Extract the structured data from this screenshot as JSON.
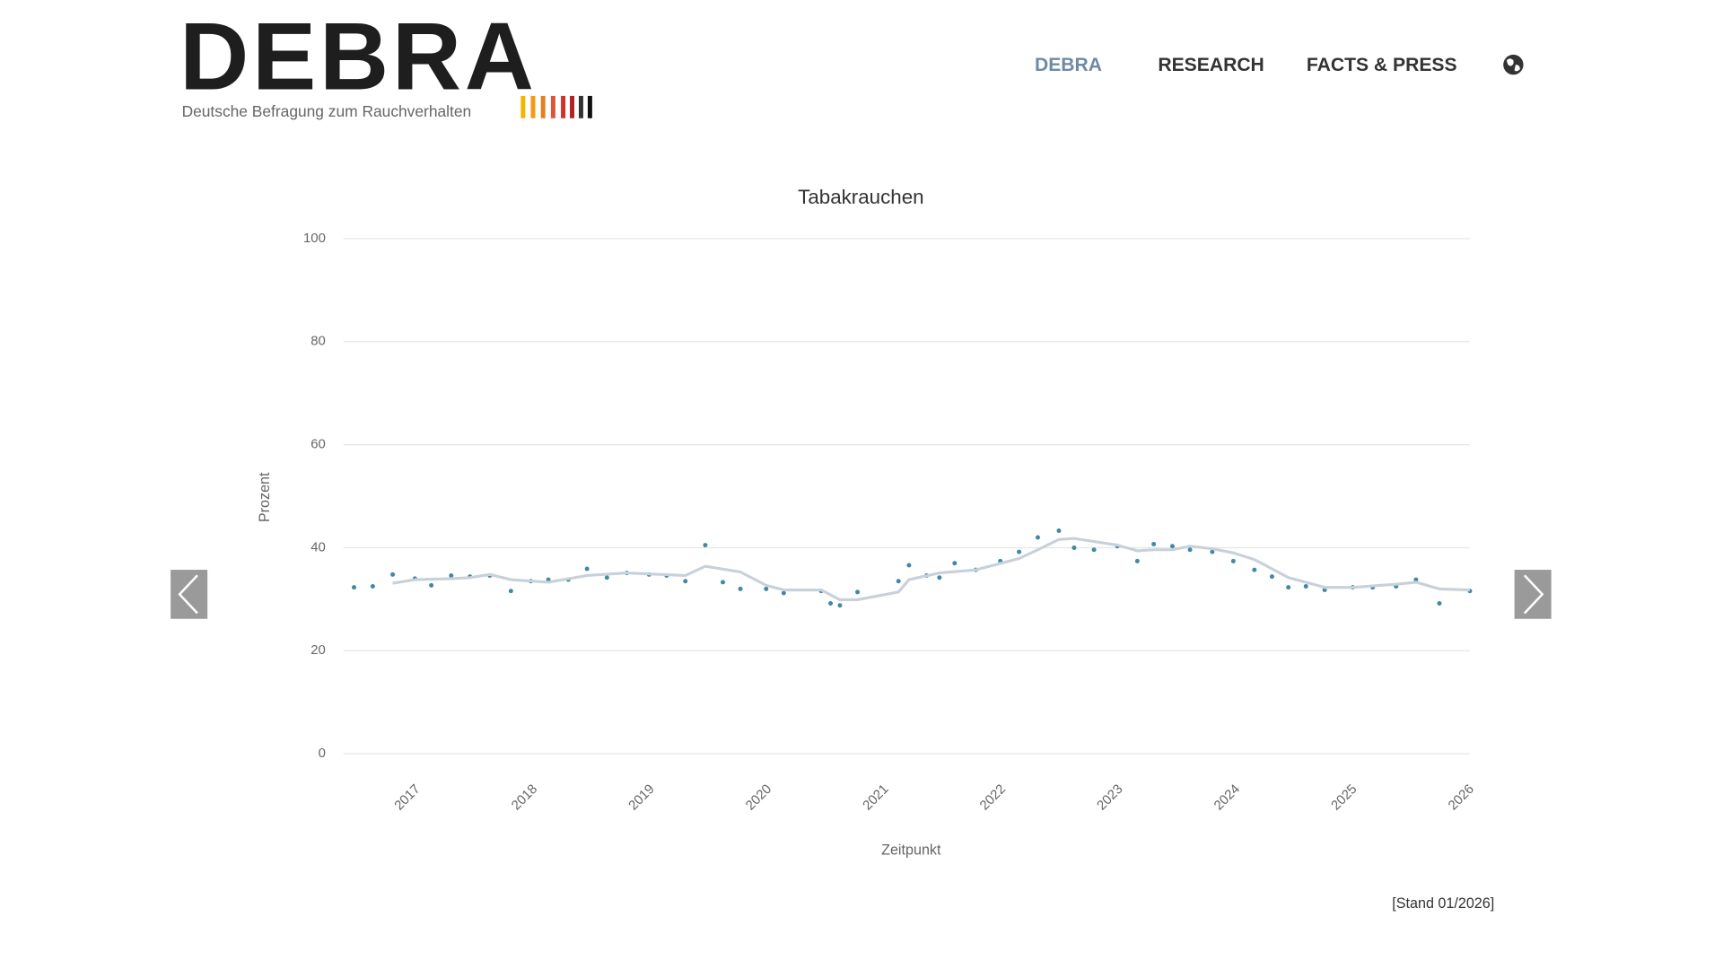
{
  "header": {
    "logo": "DEBRA",
    "tagline": "Deutsche Befragung zum Rauchverhalten",
    "nav": [
      "DEBRA",
      "RESEARCH",
      "FACTS & PRESS"
    ]
  },
  "chart_data": {
    "type": "line",
    "title": "Tabakrauchen",
    "x_label": "Zeitpunkt",
    "y_label": "Prozent",
    "xlim": [
      2016.38,
      2026
    ],
    "xticks": [
      2017,
      2018,
      2019,
      2020,
      2021,
      2022,
      2023,
      2024,
      2025,
      2026
    ],
    "ylim": [
      0,
      100
    ],
    "yticks": [
      0,
      20,
      40,
      60,
      80,
      100
    ],
    "grid": true,
    "series": [
      {
        "type": "scatter",
        "color": "#3f88a6",
        "x": [
          2016.47,
          2016.63,
          2016.8,
          2016.99,
          2017.13,
          2017.3,
          2017.46,
          2017.63,
          2017.81,
          2017.98,
          2018.13,
          2018.3,
          2018.46,
          2018.63,
          2018.8,
          2018.99,
          2019.14,
          2019.3,
          2019.47,
          2019.62,
          2019.77,
          2019.99,
          2020.14,
          2020.46,
          2020.54,
          2020.62,
          2020.77,
          2021.12,
          2021.21,
          2021.36,
          2021.47,
          2021.6,
          2021.78,
          2021.99,
          2022.15,
          2022.31,
          2022.49,
          2022.62,
          2022.79,
          2022.99,
          2023.16,
          2023.3,
          2023.46,
          2023.61,
          2023.8,
          2023.98,
          2024.16,
          2024.31,
          2024.45,
          2024.6,
          2024.76,
          2025.0,
          2025.17,
          2025.37,
          2025.54,
          2025.74,
          2026.0
        ],
        "values": [
          32.3,
          32.5,
          34.8,
          34.0,
          32.7,
          34.6,
          34.4,
          34.6,
          31.6,
          33.5,
          33.8,
          33.8,
          35.9,
          34.2,
          35.1,
          34.8,
          34.6,
          33.5,
          40.5,
          33.3,
          32.0,
          32.0,
          31.2,
          31.6,
          29.2,
          28.8,
          31.4,
          33.5,
          36.6,
          34.6,
          34.2,
          37.0,
          35.7,
          37.4,
          39.2,
          42.0,
          43.3,
          40.0,
          39.6,
          40.3,
          37.4,
          40.7,
          40.3,
          39.6,
          39.2,
          37.4,
          35.7,
          34.4,
          32.3,
          32.5,
          31.8,
          32.3,
          32.3,
          32.5,
          33.8,
          29.2,
          31.6
        ]
      },
      {
        "type": "line",
        "color": "#c8d0d9",
        "x": [
          2016.8,
          2016.99,
          2017.3,
          2017.46,
          2017.63,
          2017.81,
          2018.13,
          2018.46,
          2018.8,
          2019.3,
          2019.47,
          2019.77,
          2019.99,
          2020.14,
          2020.46,
          2020.62,
          2020.77,
          2021.12,
          2021.21,
          2021.47,
          2021.78,
          2022.15,
          2022.31,
          2022.49,
          2022.62,
          2022.99,
          2023.16,
          2023.3,
          2023.46,
          2023.61,
          2023.8,
          2023.98,
          2024.16,
          2024.31,
          2024.45,
          2024.76,
          2025.0,
          2025.37,
          2025.54,
          2025.74,
          2026.0
        ],
        "values": [
          33.1,
          33.8,
          34.0,
          34.2,
          34.8,
          33.8,
          33.3,
          34.6,
          35.1,
          34.6,
          36.4,
          35.3,
          32.7,
          31.8,
          31.8,
          29.9,
          29.9,
          31.4,
          33.8,
          35.1,
          35.7,
          37.9,
          39.6,
          41.6,
          41.8,
          40.5,
          39.4,
          39.6,
          39.6,
          40.3,
          39.8,
          39.0,
          37.7,
          35.9,
          34.2,
          32.3,
          32.3,
          32.9,
          33.3,
          32.0,
          31.8
        ]
      }
    ]
  },
  "footer": {
    "note": "[Stand 01/2026]"
  }
}
